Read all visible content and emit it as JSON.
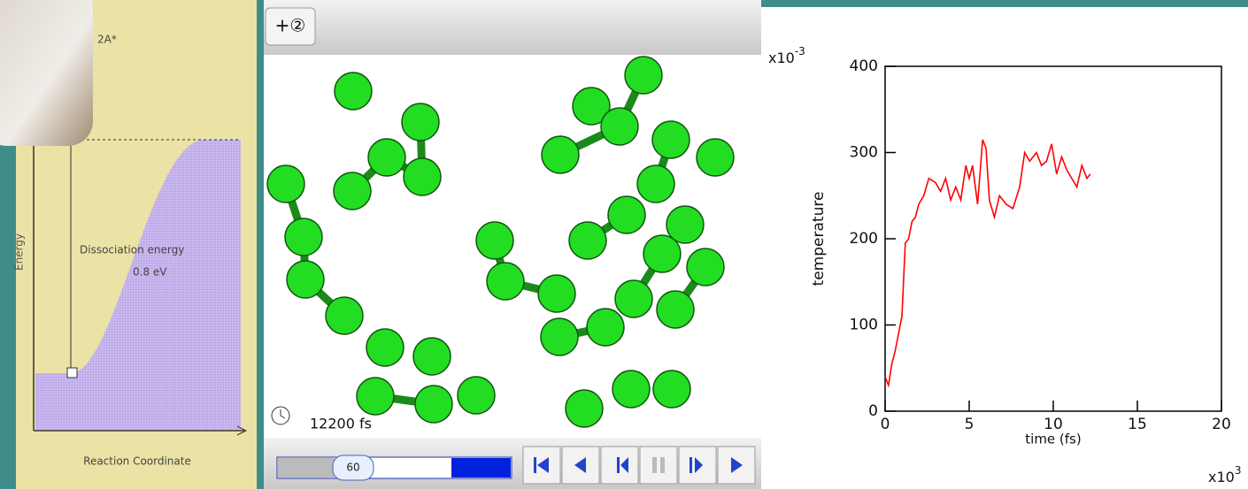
{
  "energy_diagram": {
    "state_label": "2A*",
    "y_axis_label": "Energy",
    "x_axis_label": "Reaction Coordinate",
    "annotation": "Dissociation energy",
    "annotation_value": "0.8 eV"
  },
  "simulation": {
    "add_button": "+②",
    "time_display": "12200 fs",
    "slider_value": "60"
  },
  "chart_data": {
    "type": "line",
    "x_axis_label": "time (fs)",
    "y_axis_label": "temperature",
    "x_multiplier": {
      "base": "x10",
      "exponent": "3"
    },
    "y_multiplier": {
      "base": "x10",
      "exponent": "-3"
    },
    "xlim": [
      0,
      20
    ],
    "ylim": [
      0,
      400
    ],
    "xticks": [
      0,
      5,
      10,
      15,
      20
    ],
    "yticks": [
      0,
      100,
      200,
      300,
      400
    ],
    "x": [
      0,
      0.2,
      0.4,
      0.6,
      0.8,
      1.0,
      1.2,
      1.4,
      1.6,
      1.8,
      2.0,
      2.3,
      2.6,
      3.0,
      3.3,
      3.6,
      3.9,
      4.2,
      4.5,
      4.8,
      5.0,
      5.2,
      5.5,
      5.8,
      6.0,
      6.2,
      6.5,
      6.8,
      7.2,
      7.6,
      8.0,
      8.3,
      8.6,
      9.0,
      9.3,
      9.6,
      9.9,
      10.2,
      10.5,
      10.8,
      11.1,
      11.4,
      11.7,
      12.0,
      12.2
    ],
    "series": [
      {
        "name": "temperature",
        "color": "#ff0000",
        "values": [
          40,
          30,
          55,
          70,
          90,
          110,
          195,
          200,
          220,
          225,
          240,
          250,
          270,
          265,
          255,
          270,
          245,
          260,
          245,
          285,
          270,
          285,
          240,
          315,
          305,
          245,
          225,
          250,
          240,
          235,
          260,
          300,
          290,
          300,
          285,
          290,
          310,
          275,
          295,
          280,
          270,
          260,
          285,
          270,
          275
        ]
      }
    ]
  }
}
